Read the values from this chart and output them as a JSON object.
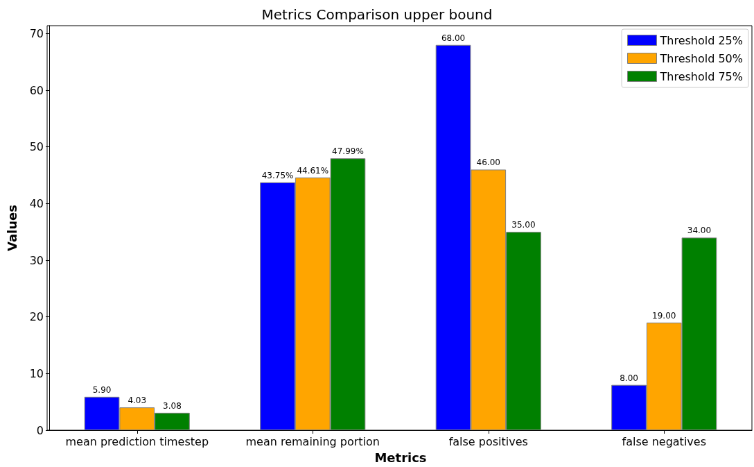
{
  "chart_data": {
    "type": "bar",
    "title": "Metrics Comparison upper bound",
    "xlabel": "Metrics",
    "ylabel": "Values",
    "categories": [
      "mean prediction timestep",
      "mean remaining portion",
      "false positives",
      "false negatives"
    ],
    "series": [
      {
        "name": "Threshold 25%",
        "color": "#0000ff",
        "values": [
          5.9,
          43.75,
          68,
          8
        ],
        "value_labels": [
          "5.90",
          "43.75%",
          "68.00",
          "8.00"
        ]
      },
      {
        "name": "Threshold 50%",
        "color": "#ffa500",
        "values": [
          4.03,
          44.61,
          46,
          19
        ],
        "value_labels": [
          "4.03",
          "44.61%",
          "46.00",
          "19.00"
        ]
      },
      {
        "name": "Threshold 75%",
        "color": "#008000",
        "values": [
          3.08,
          47.99,
          35,
          34
        ],
        "value_labels": [
          "3.08",
          "47.99%",
          "35.00",
          "34.00"
        ]
      }
    ],
    "ylim": [
      0,
      71.4
    ],
    "yticks": [
      0,
      10,
      20,
      30,
      40,
      50,
      60,
      70
    ],
    "grid": false,
    "legend": "top right"
  }
}
